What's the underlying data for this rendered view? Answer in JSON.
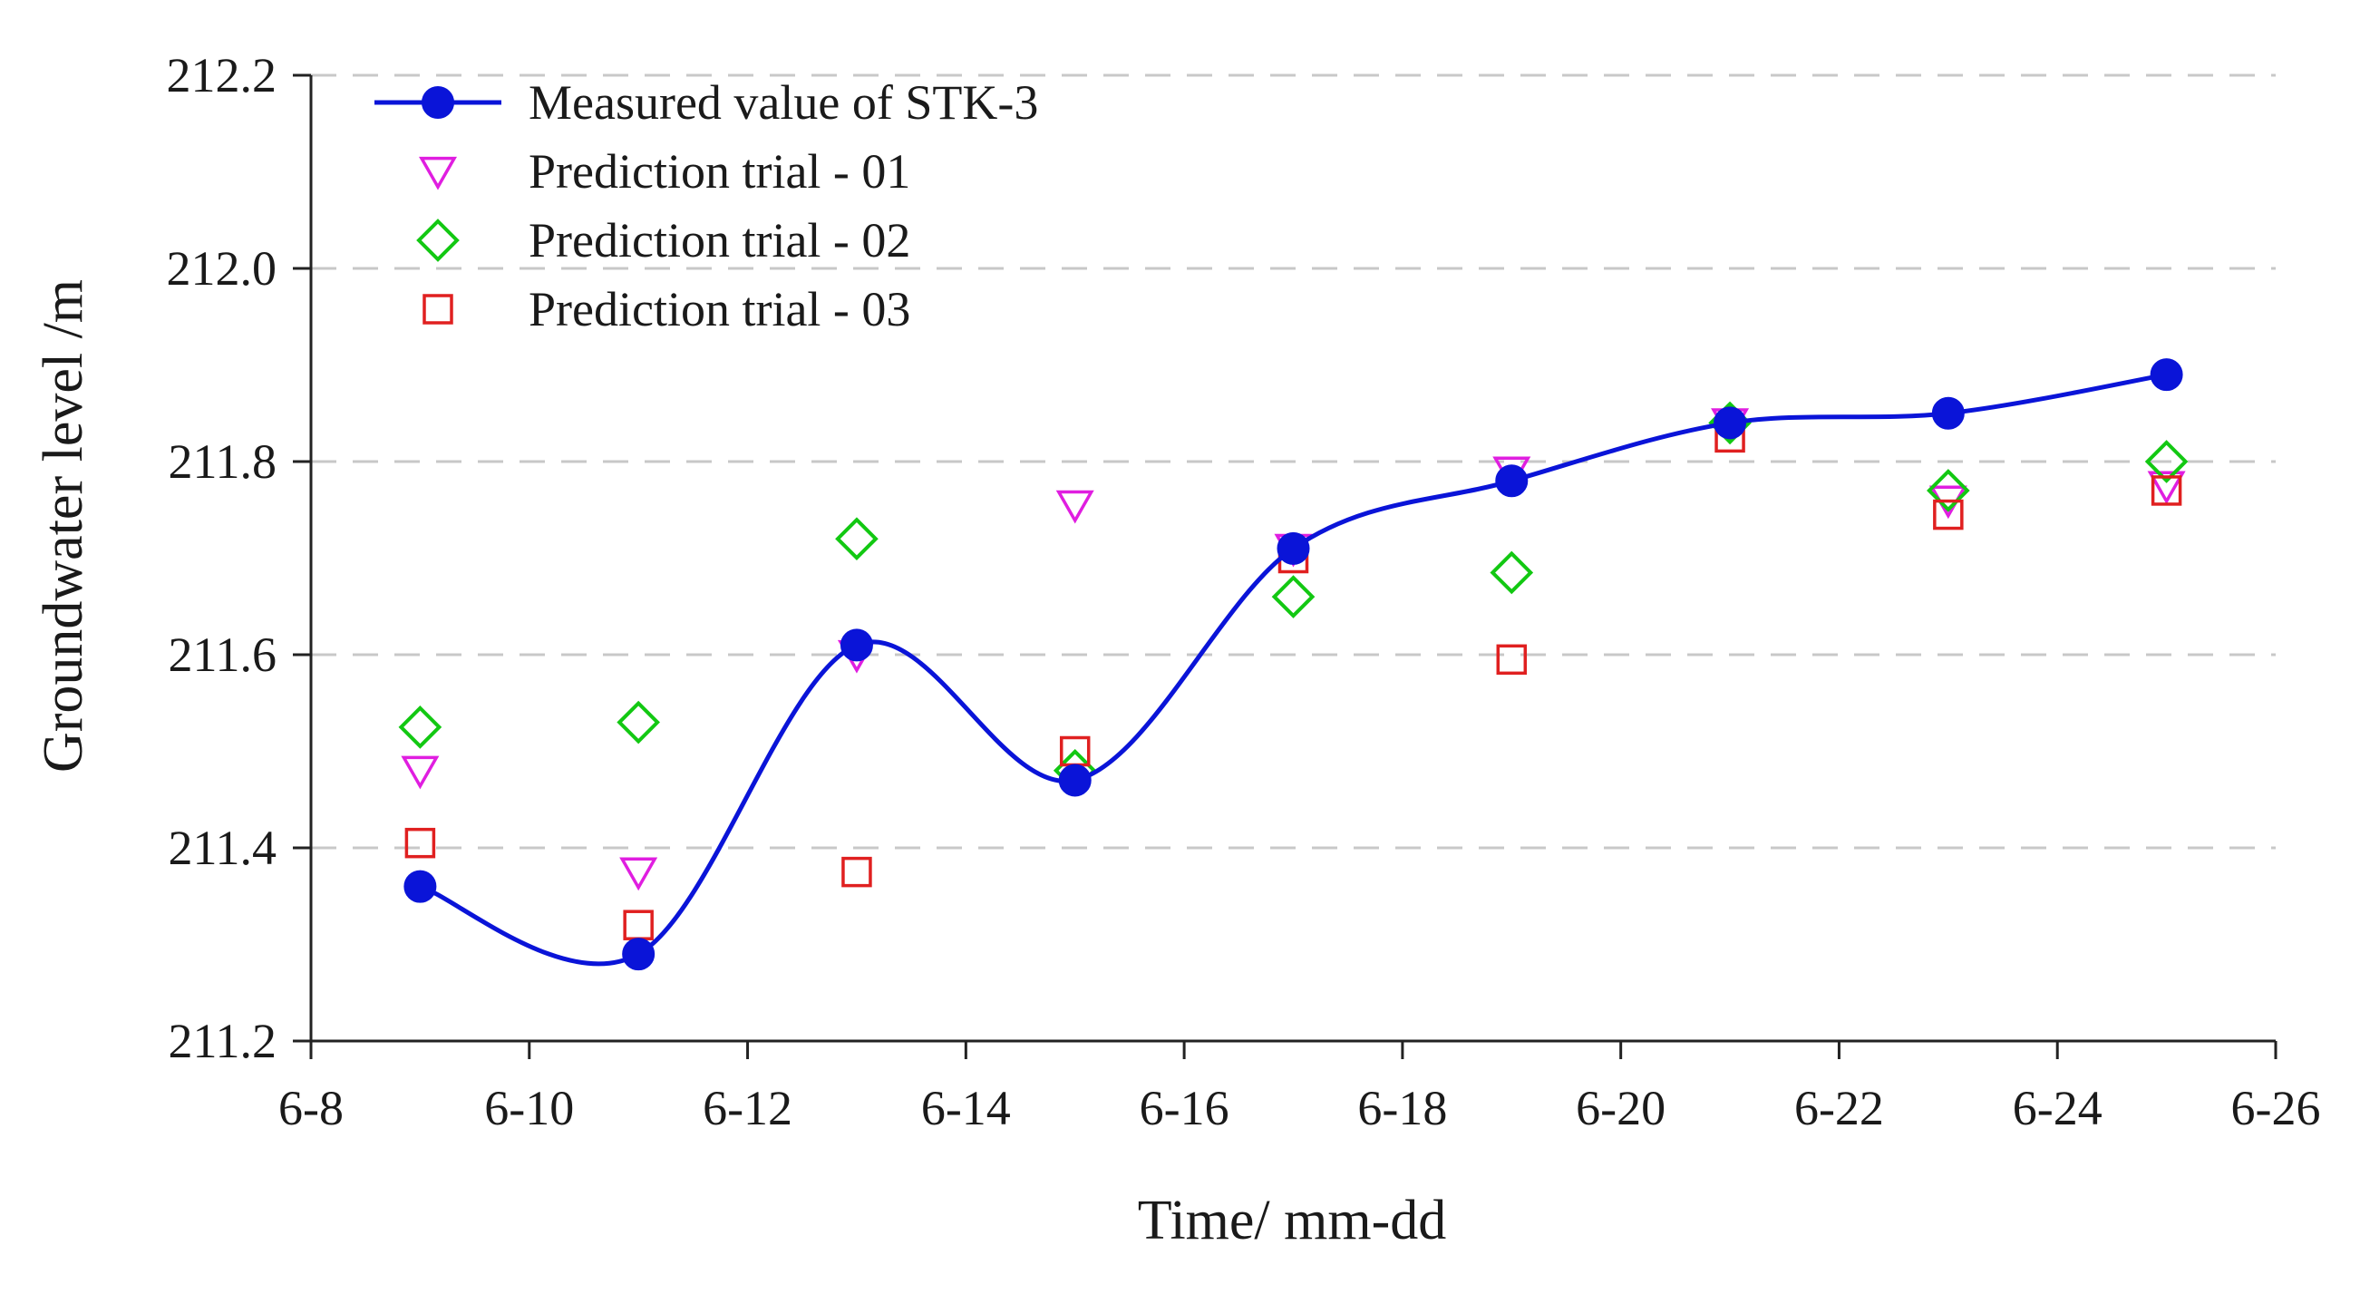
{
  "chart_data": {
    "type": "line",
    "title": "",
    "xlabel": "Time/ mm-dd",
    "ylabel": "Groundwater level /m",
    "xlim": [
      8,
      26
    ],
    "ylim": [
      211.2,
      212.2
    ],
    "grid": "horizontal-dashed",
    "legend_position": "top-left",
    "x_tick_values": [
      8,
      10,
      12,
      14,
      16,
      18,
      20,
      22,
      24,
      26
    ],
    "x_tick_labels": [
      "6-8",
      "6-10",
      "6-12",
      "6-14",
      "6-16",
      "6-18",
      "6-20",
      "6-22",
      "6-24",
      "6-26"
    ],
    "y_tick_values": [
      211.2,
      211.4,
      211.6,
      211.8,
      212.0,
      212.2
    ],
    "y_tick_labels": [
      "211.2",
      "211.4",
      "211.6",
      "211.8",
      "212.0",
      "212.2"
    ],
    "x": [
      9,
      11,
      13,
      15,
      17,
      19,
      21,
      23,
      25
    ],
    "series": [
      {
        "name": "Measured value of  STK-3",
        "marker": "circle",
        "line": true,
        "color": "#0a14d8",
        "values": [
          211.36,
          211.29,
          211.61,
          211.47,
          211.71,
          211.78,
          211.84,
          211.85,
          211.89
        ]
      },
      {
        "name": "Prediction trial - 01",
        "marker": "triangle-down",
        "line": false,
        "color": "#e01ee0",
        "values": [
          211.48,
          211.375,
          211.6,
          211.755,
          211.71,
          211.79,
          211.84,
          211.76,
          211.775
        ]
      },
      {
        "name": "Prediction trial - 02",
        "marker": "diamond",
        "line": false,
        "color": "#12c812",
        "values": [
          211.525,
          211.53,
          211.72,
          211.48,
          211.66,
          211.685,
          211.84,
          211.77,
          211.8
        ]
      },
      {
        "name": "Prediction trial - 03",
        "marker": "square",
        "line": false,
        "color": "#e02020",
        "values": [
          211.405,
          211.32,
          211.375,
          211.5,
          211.7,
          211.595,
          211.825,
          211.745,
          211.77
        ]
      }
    ]
  }
}
